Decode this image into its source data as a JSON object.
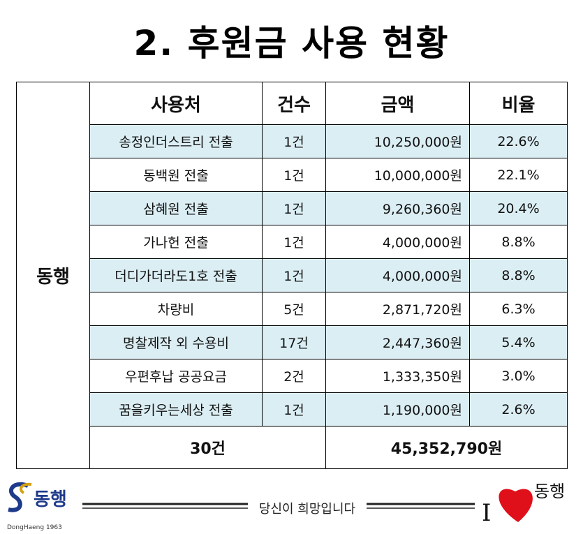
{
  "title": "2. 후원금 사용 현황",
  "table": {
    "group": "동행",
    "header": [
      "사용처",
      "건수",
      "금액",
      "비율"
    ],
    "rows": [
      [
        "송정인더스트리 전출",
        "1건",
        "10,250,000원",
        "22.6%"
      ],
      [
        "동백원 전출",
        "1건",
        "10,000,000원",
        "22.1%"
      ],
      [
        "삼혜원 전출",
        "1건",
        "9,260,360원",
        "20.4%"
      ],
      [
        "가나헌 전출",
        "1건",
        "4,000,000원",
        "8.8%"
      ],
      [
        "더디가더라도1호 전출",
        "1건",
        "4,000,000원",
        "8.8%"
      ],
      [
        "차량비",
        "5건",
        "2,871,720원",
        "6.3%"
      ],
      [
        "명찰제작 외 수용비",
        "17건",
        "2,447,360원",
        "5.4%"
      ],
      [
        "우편후납 공공요금",
        "2건",
        "1,333,350원",
        "3.0%"
      ],
      [
        "꿈을키우는세상 전출",
        "1건",
        "1,190,000원",
        "2.6%"
      ]
    ],
    "total": [
      "30건",
      "45,352,790원"
    ]
  },
  "footer": {
    "left_logo": "동행",
    "left_caption": "DongHaeng 1963",
    "slogan": "당신이 희망입니다",
    "right_logo_i": "I",
    "right_logo": "동행"
  }
}
